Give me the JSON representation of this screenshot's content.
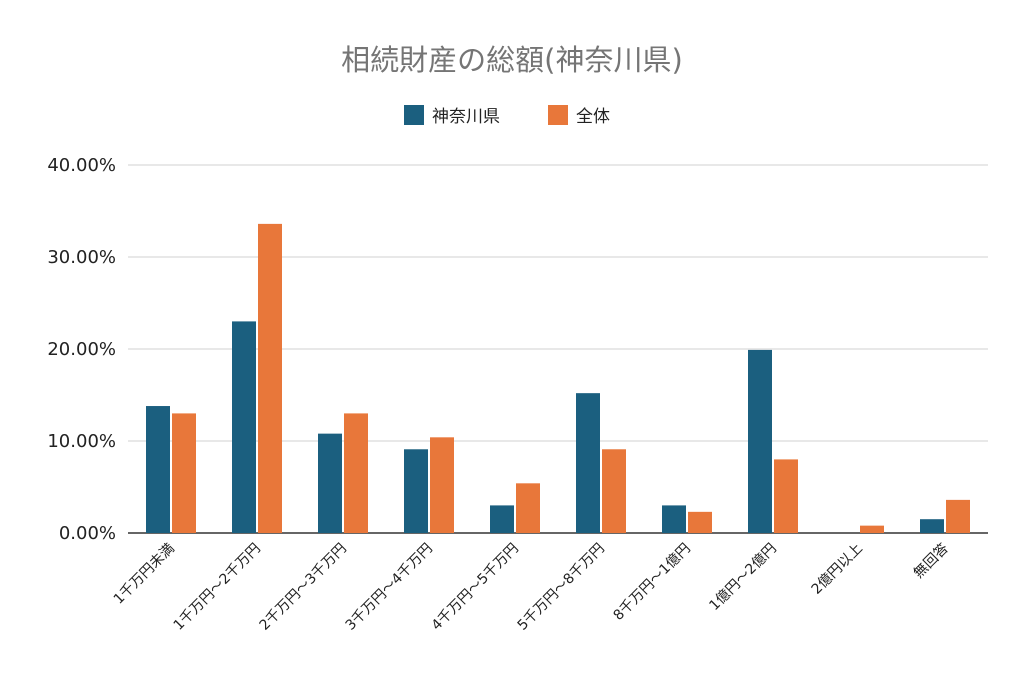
{
  "chart_data": {
    "type": "bar",
    "title": "相続財産の総額(神奈川県)",
    "categories": [
      "1千万円未満",
      "1千万円～2千万円",
      "2千万円～3千万円",
      "3千万円～4千万円",
      "4千万円～5千万円",
      "5千万円～8千万円",
      "8千万円～1億円",
      "1億円～2億円",
      "2億円以上",
      "無回答"
    ],
    "series": [
      {
        "name": "神奈川県",
        "color": "#1b5f7f",
        "values": [
          13.8,
          23.0,
          10.8,
          9.1,
          3.0,
          15.2,
          3.0,
          19.9,
          0.0,
          1.5
        ]
      },
      {
        "name": "全体",
        "color": "#e8773a",
        "values": [
          13.0,
          33.6,
          13.0,
          10.4,
          5.4,
          9.1,
          2.3,
          8.0,
          0.8,
          3.6
        ]
      }
    ],
    "ylim": [
      0,
      40
    ],
    "yticks": [
      "0.00%",
      "10.00%",
      "20.00%",
      "30.00%",
      "40.00%"
    ],
    "xlabel": "",
    "ylabel": "",
    "legend": "top-center",
    "grid": true
  }
}
